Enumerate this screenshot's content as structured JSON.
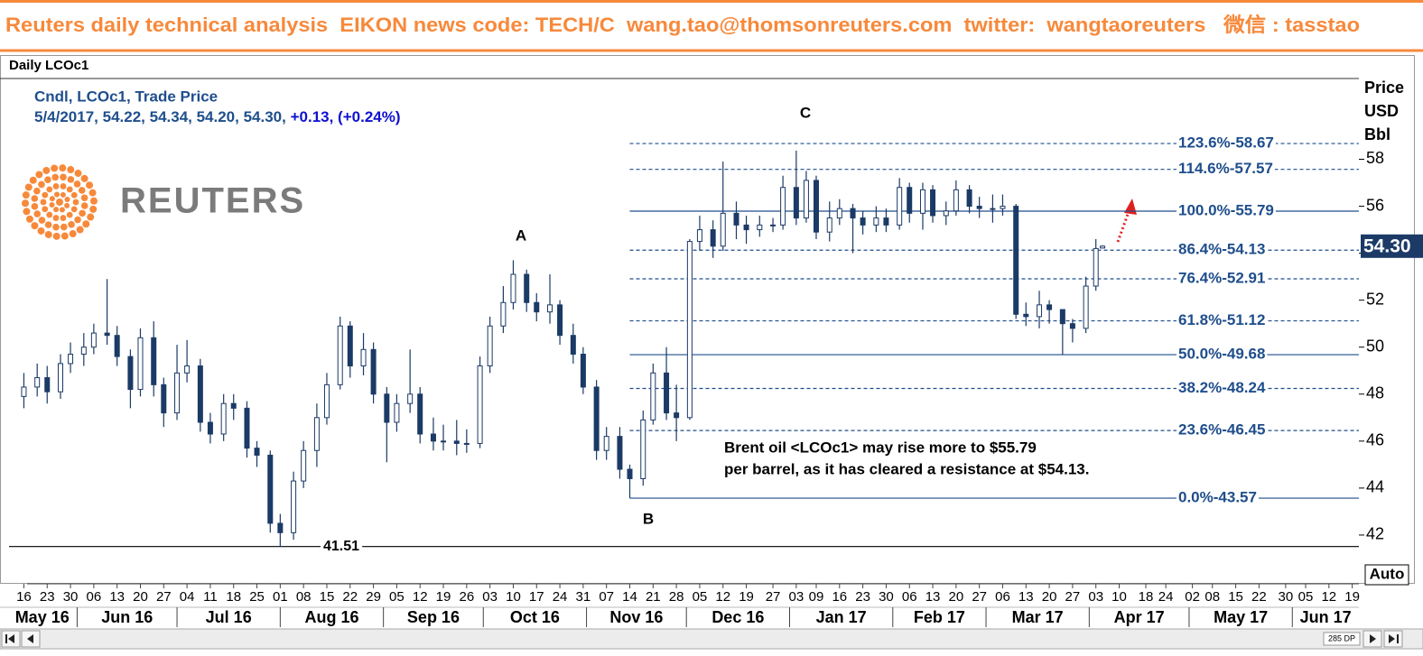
{
  "header": {
    "text": "Reuters daily technical analysis  EIKON news code: TECH/C  wang.tao@thomsonreuters.com  twitter:  wangtaoreuters   微信 : tasstao"
  },
  "chart_data": {
    "type": "candlestick",
    "title": "Daily LCOc1",
    "legend_line": "Cndl, LCOc1, Trade Price",
    "info": "5/4/2017, 54.22, 54.34, 54.20, 54.30,",
    "info_change": "+0.13, (+0.24%)",
    "logo": "REUTERS",
    "y_axis_label": [
      "Price",
      "USD",
      "Bbl"
    ],
    "color": "#1b3a66",
    "up_color": "#ffffff",
    "x": [
      "2016-05-16",
      "2016-05-20",
      "2016-05-23",
      "2016-05-27",
      "2016-05-30",
      "2016-06-03",
      "2016-06-06",
      "2016-06-10",
      "2016-06-13",
      "2016-06-17",
      "2016-06-20",
      "2016-06-24",
      "2016-06-27",
      "2016-07-01",
      "2016-07-04",
      "2016-07-08",
      "2016-07-11",
      "2016-07-15",
      "2016-07-18",
      "2016-07-22",
      "2016-07-25",
      "2016-07-29",
      "2016-08-01",
      "2016-08-05",
      "2016-08-08",
      "2016-08-12",
      "2016-08-15",
      "2016-08-19",
      "2016-08-22",
      "2016-08-26",
      "2016-08-29",
      "2016-09-02",
      "2016-09-05",
      "2016-09-09",
      "2016-09-12",
      "2016-09-16",
      "2016-09-19",
      "2016-09-23",
      "2016-09-26",
      "2016-09-30",
      "2016-10-03",
      "2016-10-07",
      "2016-10-10",
      "2016-10-14",
      "2016-10-17",
      "2016-10-21",
      "2016-10-24",
      "2016-10-28",
      "2016-10-31",
      "2016-11-04",
      "2016-11-07",
      "2016-11-11",
      "2016-11-14",
      "2016-11-18",
      "2016-11-21",
      "2016-11-25",
      "2016-11-28",
      "2016-12-02",
      "2016-12-05",
      "2016-12-09",
      "2016-12-12",
      "2016-12-16",
      "2016-12-19",
      "2016-12-23",
      "2016-12-27",
      "2016-12-30",
      "2017-01-03",
      "2017-01-06",
      "2017-01-09",
      "2017-01-13",
      "2017-01-16",
      "2017-01-20",
      "2017-01-23",
      "2017-01-27",
      "2017-01-30",
      "2017-02-03",
      "2017-02-06",
      "2017-02-10",
      "2017-02-13",
      "2017-02-17",
      "2017-02-20",
      "2017-02-24",
      "2017-02-27",
      "2017-03-03",
      "2017-03-06",
      "2017-03-10",
      "2017-03-13",
      "2017-03-17",
      "2017-03-20",
      "2017-03-24",
      "2017-03-27",
      "2017-03-31",
      "2017-04-03",
      "2017-04-05"
    ],
    "open": [
      47.9,
      48.3,
      48.7,
      48.1,
      49.3,
      49.7,
      50.0,
      50.6,
      50.5,
      49.6,
      48.2,
      50.4,
      48.4,
      47.2,
      48.9,
      49.2,
      46.8,
      46.3,
      47.6,
      47.4,
      45.7,
      45.4,
      42.5,
      42.1,
      44.3,
      45.6,
      47.0,
      48.4,
      50.9,
      49.2,
      49.9,
      48.0,
      46.8,
      47.6,
      48.0,
      46.3,
      46.0,
      46.0,
      45.9,
      45.9,
      49.2,
      50.9,
      51.9,
      53.1,
      51.9,
      51.5,
      51.8,
      50.5,
      49.7,
      48.3,
      45.6,
      46.2,
      44.8,
      44.4,
      46.9,
      48.9,
      47.2,
      47.0,
      54.5,
      55.0,
      54.3,
      55.7,
      55.2,
      55.0,
      55.2,
      55.2,
      56.8,
      55.5,
      57.1,
      54.9,
      55.5,
      55.9,
      55.5,
      55.2,
      55.5,
      55.2,
      56.8,
      55.7,
      56.7,
      55.6,
      55.8,
      56.7,
      56.0,
      55.9,
      55.9,
      56.0,
      51.4,
      51.3,
      51.8,
      51.6,
      51.0,
      50.8,
      52.6,
      54.22
    ],
    "high": [
      48.9,
      49.3,
      49.2,
      49.7,
      50.2,
      50.6,
      51.0,
      52.9,
      50.9,
      49.9,
      50.8,
      51.1,
      48.7,
      50.1,
      50.3,
      49.5,
      47.2,
      48.0,
      48.0,
      47.7,
      46.0,
      45.6,
      42.9,
      44.7,
      46.0,
      47.6,
      48.9,
      51.3,
      51.1,
      50.6,
      50.2,
      48.3,
      48.0,
      49.9,
      48.3,
      47.0,
      46.7,
      46.9,
      46.5,
      49.6,
      51.3,
      52.6,
      53.7,
      53.3,
      52.3,
      53.1,
      52.0,
      51.0,
      50.0,
      48.6,
      46.6,
      46.6,
      45.0,
      47.3,
      49.3,
      50.0,
      48.4,
      54.6,
      55.6,
      55.4,
      57.9,
      56.2,
      55.6,
      55.6,
      55.5,
      57.3,
      58.37,
      57.5,
      57.3,
      56.2,
      56.3,
      56.1,
      55.8,
      56.0,
      55.9,
      57.2,
      57.0,
      57.0,
      56.9,
      56.2,
      57.1,
      56.9,
      56.4,
      56.5,
      56.5,
      56.1,
      51.9,
      52.4,
      52.0,
      51.6,
      51.2,
      53.0,
      54.6,
      54.34
    ],
    "low": [
      47.4,
      47.9,
      47.6,
      47.8,
      48.9,
      49.2,
      49.7,
      50.1,
      49.2,
      47.4,
      47.9,
      47.9,
      46.6,
      46.9,
      48.5,
      46.4,
      45.9,
      46.0,
      46.9,
      45.3,
      44.9,
      42.1,
      41.51,
      41.8,
      44.0,
      44.9,
      46.7,
      48.2,
      48.7,
      48.8,
      47.6,
      45.1,
      46.4,
      47.2,
      45.9,
      45.6,
      45.6,
      45.4,
      45.5,
      45.7,
      48.9,
      50.6,
      51.6,
      51.5,
      51.1,
      51.0,
      50.1,
      49.3,
      48.0,
      45.2,
      45.2,
      44.4,
      43.57,
      44.1,
      46.7,
      46.9,
      46.0,
      46.9,
      54.1,
      53.8,
      54.1,
      54.6,
      54.4,
      54.7,
      54.9,
      55.0,
      55.2,
      55.3,
      54.6,
      54.5,
      55.2,
      54.0,
      54.8,
      54.9,
      54.9,
      55.0,
      55.3,
      55.0,
      55.3,
      55.2,
      55.6,
      55.7,
      55.5,
      55.3,
      55.6,
      51.2,
      50.9,
      50.8,
      51.0,
      49.7,
      50.2,
      50.6,
      52.4,
      54.2
    ],
    "close": [
      48.3,
      48.7,
      48.1,
      49.3,
      49.7,
      50.0,
      50.6,
      50.5,
      49.6,
      48.2,
      50.4,
      48.4,
      47.2,
      48.9,
      49.2,
      46.8,
      46.3,
      47.6,
      47.4,
      45.7,
      45.4,
      42.5,
      42.1,
      44.3,
      45.6,
      47.0,
      48.4,
      50.9,
      49.2,
      49.9,
      48.0,
      46.8,
      47.6,
      48.0,
      46.3,
      46.0,
      46.0,
      45.9,
      45.9,
      49.2,
      50.9,
      51.9,
      53.1,
      51.9,
      51.5,
      51.8,
      50.5,
      49.7,
      48.3,
      45.6,
      46.2,
      44.8,
      44.4,
      46.9,
      48.9,
      47.2,
      47.0,
      54.5,
      55.0,
      54.3,
      55.7,
      55.2,
      55.0,
      55.2,
      55.2,
      56.8,
      55.5,
      57.1,
      54.9,
      55.5,
      55.9,
      55.5,
      55.2,
      55.5,
      55.2,
      56.8,
      55.7,
      56.7,
      55.6,
      55.8,
      56.7,
      56.0,
      55.9,
      55.9,
      56.0,
      51.4,
      51.3,
      51.8,
      51.6,
      51.0,
      50.8,
      52.6,
      54.2,
      54.3
    ],
    "price_tag": "54.30",
    "ylim": [
      40,
      61.4
    ],
    "yticks": [
      42,
      44,
      46,
      48,
      50,
      52,
      54,
      56,
      58
    ],
    "xlim": [
      "2016-05-11",
      "2017-06-21"
    ],
    "xticks": [
      {
        "value": "2016-05-16",
        "label": "16"
      },
      {
        "value": "2016-05-23",
        "label": "23"
      },
      {
        "value": "2016-05-30",
        "label": "30"
      },
      {
        "value": "2016-06-06",
        "label": "06"
      },
      {
        "value": "2016-06-13",
        "label": "13"
      },
      {
        "value": "2016-06-20",
        "label": "20"
      },
      {
        "value": "2016-06-27",
        "label": "27"
      },
      {
        "value": "2016-07-04",
        "label": "04"
      },
      {
        "value": "2016-07-11",
        "label": "11"
      },
      {
        "value": "2016-07-18",
        "label": "18"
      },
      {
        "value": "2016-07-25",
        "label": "25"
      },
      {
        "value": "2016-08-01",
        "label": "01"
      },
      {
        "value": "2016-08-08",
        "label": "08"
      },
      {
        "value": "2016-08-15",
        "label": "15"
      },
      {
        "value": "2016-08-22",
        "label": "22"
      },
      {
        "value": "2016-08-29",
        "label": "29"
      },
      {
        "value": "2016-09-05",
        "label": "05"
      },
      {
        "value": "2016-09-12",
        "label": "12"
      },
      {
        "value": "2016-09-19",
        "label": "19"
      },
      {
        "value": "2016-09-26",
        "label": "26"
      },
      {
        "value": "2016-10-03",
        "label": "03"
      },
      {
        "value": "2016-10-10",
        "label": "10"
      },
      {
        "value": "2016-10-17",
        "label": "17"
      },
      {
        "value": "2016-10-24",
        "label": "24"
      },
      {
        "value": "2016-10-31",
        "label": "31"
      },
      {
        "value": "2016-11-07",
        "label": "07"
      },
      {
        "value": "2016-11-14",
        "label": "14"
      },
      {
        "value": "2016-11-21",
        "label": "21"
      },
      {
        "value": "2016-11-28",
        "label": "28"
      },
      {
        "value": "2016-12-05",
        "label": "05"
      },
      {
        "value": "2016-12-12",
        "label": "12"
      },
      {
        "value": "2016-12-19",
        "label": "19"
      },
      {
        "value": "2016-12-27",
        "label": "27"
      },
      {
        "value": "2017-01-03",
        "label": "03"
      },
      {
        "value": "2017-01-09",
        "label": "09"
      },
      {
        "value": "2017-01-16",
        "label": "16"
      },
      {
        "value": "2017-01-23",
        "label": "23"
      },
      {
        "value": "2017-01-30",
        "label": "30"
      },
      {
        "value": "2017-02-06",
        "label": "06"
      },
      {
        "value": "2017-02-13",
        "label": "13"
      },
      {
        "value": "2017-02-20",
        "label": "20"
      },
      {
        "value": "2017-02-27",
        "label": "27"
      },
      {
        "value": "2017-03-06",
        "label": "06"
      },
      {
        "value": "2017-03-13",
        "label": "13"
      },
      {
        "value": "2017-03-20",
        "label": "20"
      },
      {
        "value": "2017-03-27",
        "label": "27"
      },
      {
        "value": "2017-04-03",
        "label": "03"
      },
      {
        "value": "2017-04-10",
        "label": "10"
      },
      {
        "value": "2017-04-18",
        "label": "18"
      },
      {
        "value": "2017-04-24",
        "label": "24"
      },
      {
        "value": "2017-05-02",
        "label": "02"
      },
      {
        "value": "2017-05-08",
        "label": "08"
      },
      {
        "value": "2017-05-15",
        "label": "15"
      },
      {
        "value": "2017-05-22",
        "label": "22"
      },
      {
        "value": "2017-05-30",
        "label": "30"
      },
      {
        "value": "2017-06-05",
        "label": "05"
      },
      {
        "value": "2017-06-12",
        "label": "12"
      },
      {
        "value": "2017-06-19",
        "label": "19"
      }
    ],
    "month_ticks": [
      {
        "value": "2016-05-01",
        "label": "May 16"
      },
      {
        "value": "2016-06-01",
        "label": "Jun 16"
      },
      {
        "value": "2016-07-01",
        "label": "Jul 16"
      },
      {
        "value": "2016-08-01",
        "label": "Aug 16"
      },
      {
        "value": "2016-09-01",
        "label": "Sep 16"
      },
      {
        "value": "2016-10-01",
        "label": "Oct 16"
      },
      {
        "value": "2016-11-01",
        "label": "Nov 16"
      },
      {
        "value": "2016-12-01",
        "label": "Dec 16"
      },
      {
        "value": "2017-01-01",
        "label": "Jan 17"
      },
      {
        "value": "2017-02-01",
        "label": "Feb 17"
      },
      {
        "value": "2017-03-01",
        "label": "Mar 17"
      },
      {
        "value": "2017-04-01",
        "label": "Apr 17"
      },
      {
        "value": "2017-05-01",
        "label": "May 17"
      },
      {
        "value": "2017-06-01",
        "label": "Jun 17"
      }
    ],
    "fib_start": "2016-11-14",
    "fib_levels": [
      {
        "value": 58.67,
        "label": "123.6%-58.67",
        "style": "dashed"
      },
      {
        "value": 57.57,
        "label": "114.6%-57.57",
        "style": "dashed"
      },
      {
        "value": 55.79,
        "label": "100.0%-55.79",
        "style": "solid"
      },
      {
        "value": 54.13,
        "label": "86.4%-54.13",
        "style": "dashed"
      },
      {
        "value": 52.91,
        "label": "76.4%-52.91",
        "style": "dashed"
      },
      {
        "value": 51.12,
        "label": "61.8%-51.12",
        "style": "dashed"
      },
      {
        "value": 49.68,
        "label": "50.0%-49.68",
        "style": "solid"
      },
      {
        "value": 48.24,
        "label": "38.2%-48.24",
        "style": "dashed"
      },
      {
        "value": 46.45,
        "label": "23.6%-46.45",
        "style": "dashed"
      },
      {
        "value": 43.57,
        "label": "0.0%-43.57",
        "style": "solid"
      }
    ],
    "support": 41.51,
    "annotations": [
      "A",
      "B",
      "C"
    ],
    "comment": [
      "Brent oil <LCOc1> may rise more to $55.79",
      "per barrel, as it has cleared a resistance at $54.13."
    ],
    "auto_label": "Auto",
    "dp_label": "285 DP"
  }
}
